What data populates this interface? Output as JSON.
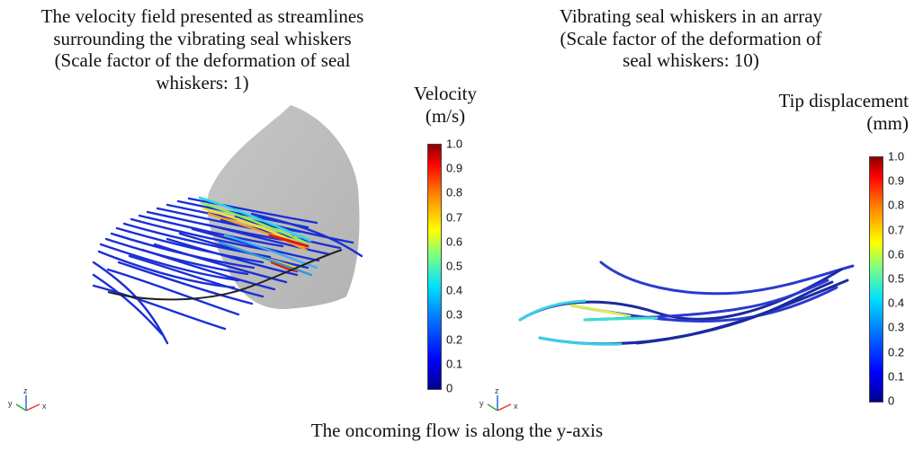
{
  "left_panel": {
    "title_lines": [
      "The velocity field presented as streamlines",
      "surrounding the vibrating seal whiskers",
      "(Scale factor of the deformation of seal",
      "whiskers: 1)"
    ],
    "colorbar": {
      "label_line1": "Velocity",
      "label_line2": "(m/s)",
      "ticks": [
        "1.0",
        "0.9",
        "0.8",
        "0.7",
        "0.6",
        "0.5",
        "0.4",
        "0.3",
        "0.2",
        "0.1",
        "0"
      ]
    },
    "axes": {
      "x": "x",
      "y": "y",
      "z": "z"
    }
  },
  "right_panel": {
    "title_lines": [
      "Vibrating seal whiskers in an array",
      "(Scale factor of the deformation of",
      "seal whiskers: 10)"
    ],
    "colorbar": {
      "label_line1": "Tip displacement",
      "label_line2": "(mm)",
      "ticks": [
        "1.0",
        "0.9",
        "0.8",
        "0.7",
        "0.6",
        "0.5",
        "0.4",
        "0.3",
        "0.2",
        "0.1",
        "0"
      ]
    },
    "axes": {
      "x": "x",
      "y": "y",
      "z": "z"
    }
  },
  "caption": "The oncoming flow is along the y-axis",
  "colors": {
    "dome": "#bdbdbd",
    "streamline": "#1a2fd6",
    "whisker": "#1a1a8c",
    "colorbar_top": "#8b0000",
    "colorbar_bottom": "#00008f"
  }
}
